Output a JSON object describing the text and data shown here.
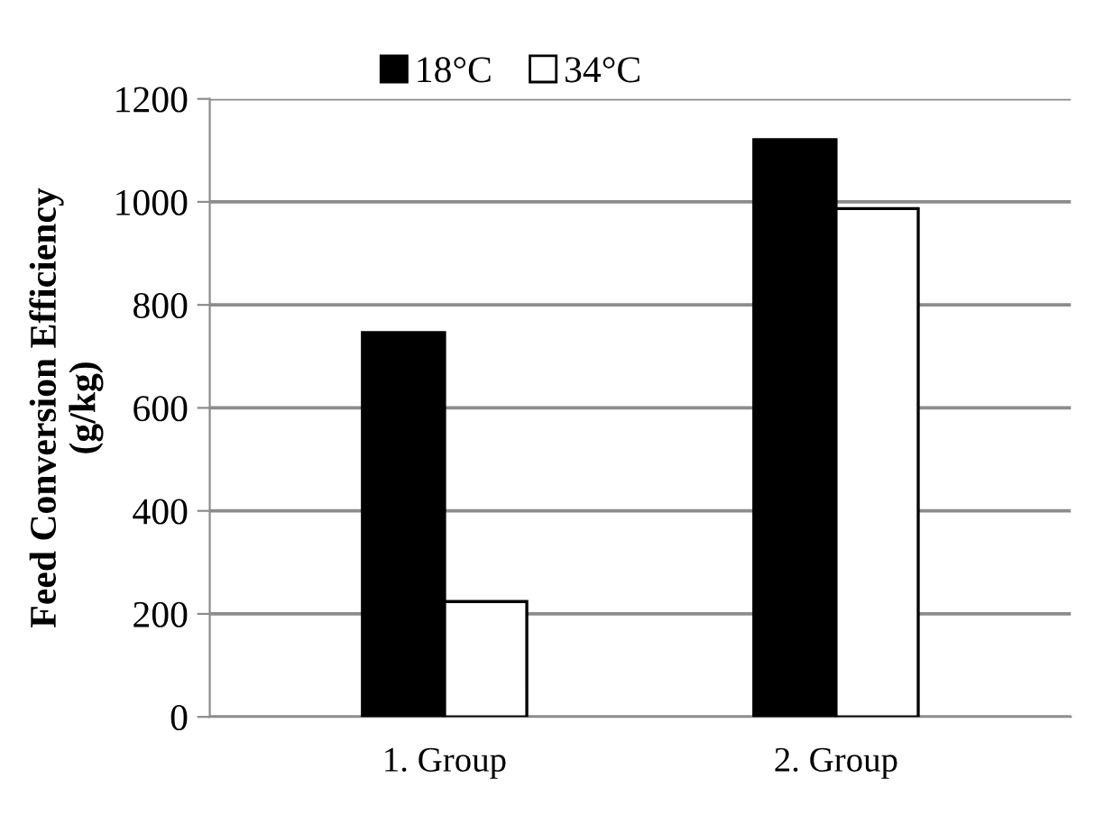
{
  "chart_data": {
    "type": "bar",
    "ylabel": "Feed Conversion Efficiency\n(g/kg)",
    "categories": [
      "1. Group",
      "2. Group"
    ],
    "series": [
      {
        "name": "18°C",
        "color": "#000000",
        "values": [
          746,
          1121
        ]
      },
      {
        "name": "34°C",
        "color": "#ffffff",
        "values": [
          224,
          987
        ]
      }
    ],
    "ylim": [
      0,
      1200
    ],
    "yticks": [
      0,
      200,
      400,
      600,
      800,
      1000,
      1200
    ],
    "grid": "y",
    "legend": "top"
  }
}
